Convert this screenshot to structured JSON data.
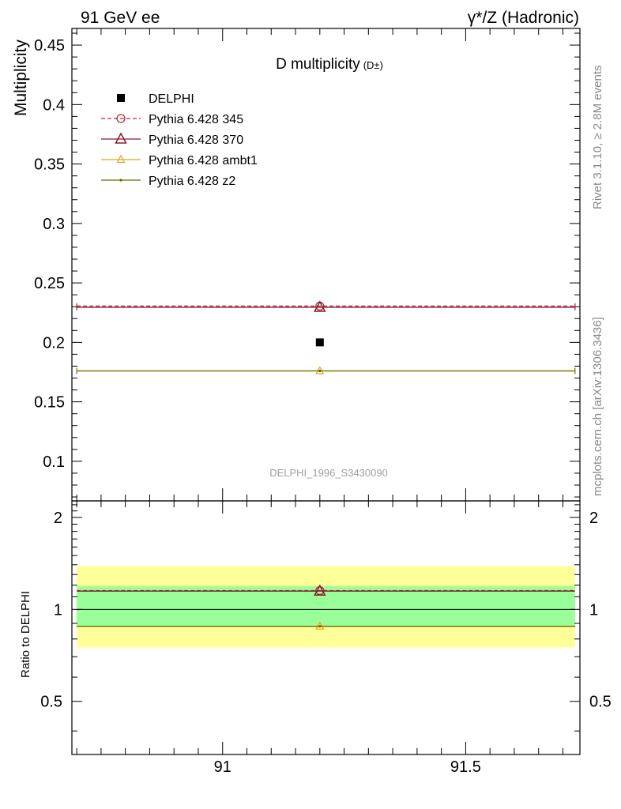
{
  "header": {
    "left": "91 GeV ee",
    "right": "γ*/Z (Hadronic)"
  },
  "side_labels": {
    "rivet": "Rivet 3.1.10, ≥ 2.8M events",
    "mcplots": "mcplots.cern.ch [arXiv:1306.3436]"
  },
  "chart_data": [
    {
      "type": "scatter",
      "title": "D multiplicity",
      "title_suffix": "(D±)",
      "ylabel": "Multiplicity",
      "xlabel": "",
      "xlim": [
        90.69,
        91.735
      ],
      "ylim": [
        0.0667,
        0.464
      ],
      "x_ticks": [
        91,
        91.5
      ],
      "x_tick_labels": [
        "91",
        "91.5"
      ],
      "y_ticks": [
        0.1,
        0.15,
        0.2,
        0.25,
        0.3,
        0.35,
        0.4,
        0.45
      ],
      "y_tick_labels": [
        "0.1",
        "0.15",
        "0.2",
        "0.25",
        "0.3",
        "0.35",
        "0.4",
        "0.45"
      ],
      "watermark": "DELPHI_1996_S3430090",
      "legend_position": "top-left",
      "bin": [
        90.7,
        91.725
      ],
      "x_center": 91.2,
      "data": {
        "name": "DELPHI",
        "x": 91.2,
        "y": 0.2,
        "color": "#000000"
      },
      "series": [
        {
          "name": "Pythia 6.428 345",
          "y": 0.2305,
          "color": "#b03040",
          "style": "dashed",
          "marker": "circle"
        },
        {
          "name": "Pythia 6.428 370",
          "y": 0.2295,
          "color": "#8b1a2a",
          "style": "solid",
          "marker": "triangle"
        },
        {
          "name": "Pythia 6.428 ambt1",
          "y": 0.176,
          "color": "#e8a317",
          "style": "solid",
          "marker": "triangle-small"
        },
        {
          "name": "Pythia 6.428 z2",
          "y": 0.176,
          "color": "#6b6b00",
          "style": "solid",
          "marker": "dot"
        }
      ]
    },
    {
      "type": "line",
      "title": "",
      "ylabel": "Ratio to DELPHI",
      "xlim": [
        90.69,
        91.735
      ],
      "ylim": [
        0.335,
        2.265
      ],
      "y_ticks": [
        0.5,
        1,
        2
      ],
      "y_tick_labels": [
        "0.5",
        "1",
        "2"
      ],
      "bands": [
        {
          "name": "outer",
          "low": 0.75,
          "high": 1.385,
          "color": "#ffff99"
        },
        {
          "name": "inner",
          "low": 0.88,
          "high": 1.19,
          "color": "#99ff99"
        }
      ],
      "reference": 1.0,
      "ratios": [
        {
          "name": "Pythia 6.428 345",
          "y": 1.1525
        },
        {
          "name": "Pythia 6.428 370",
          "y": 1.1475
        },
        {
          "name": "Pythia 6.428 ambt1",
          "y": 0.88
        },
        {
          "name": "Pythia 6.428 z2",
          "y": 0.88
        }
      ]
    }
  ]
}
